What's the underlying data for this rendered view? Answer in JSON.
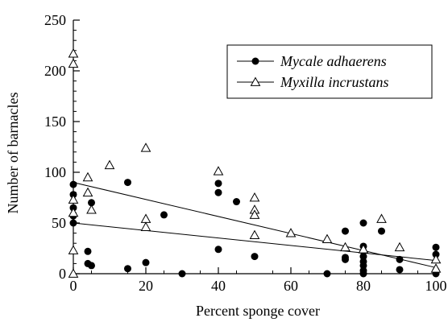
{
  "chart_data": {
    "type": "scatter",
    "xlabel": "Percent sponge cover",
    "ylabel": "Number of barnacles",
    "xlim": [
      0,
      100
    ],
    "ylim": [
      0,
      250
    ],
    "xticks": [
      0,
      20,
      40,
      60,
      80,
      100
    ],
    "yticks": [
      0,
      50,
      100,
      150,
      200,
      250
    ],
    "grid": false,
    "legend_position": "top-right",
    "series": [
      {
        "name": "Mycale adhaerens",
        "marker": "filled-circle",
        "color": "#000000",
        "points": [
          [
            0,
            88
          ],
          [
            0,
            78
          ],
          [
            0,
            65
          ],
          [
            0,
            57
          ],
          [
            0,
            50
          ],
          [
            4,
            22
          ],
          [
            4,
            10
          ],
          [
            5,
            70
          ],
          [
            5,
            8
          ],
          [
            15,
            90
          ],
          [
            15,
            5
          ],
          [
            20,
            11
          ],
          [
            25,
            58
          ],
          [
            30,
            0
          ],
          [
            40,
            89
          ],
          [
            40,
            80
          ],
          [
            40,
            24
          ],
          [
            45,
            71
          ],
          [
            50,
            17
          ],
          [
            70,
            0
          ],
          [
            75,
            42
          ],
          [
            75,
            16
          ],
          [
            75,
            14
          ],
          [
            80,
            50
          ],
          [
            80,
            27
          ],
          [
            80,
            22
          ],
          [
            80,
            17
          ],
          [
            80,
            12
          ],
          [
            80,
            8
          ],
          [
            80,
            3
          ],
          [
            80,
            0
          ],
          [
            85,
            42
          ],
          [
            90,
            14
          ],
          [
            90,
            4
          ],
          [
            100,
            26
          ],
          [
            100,
            19
          ],
          [
            100,
            3
          ],
          [
            100,
            0
          ]
        ],
        "trend": {
          "x": [
            0,
            100
          ],
          "y": [
            90,
            6
          ]
        }
      },
      {
        "name": "Myxilla incrustans",
        "marker": "open-triangle",
        "color": "#000000",
        "points": [
          [
            0,
            217
          ],
          [
            0,
            207
          ],
          [
            0,
            73
          ],
          [
            0,
            60
          ],
          [
            0,
            23
          ],
          [
            0,
            0
          ],
          [
            4,
            95
          ],
          [
            4,
            80
          ],
          [
            5,
            63
          ],
          [
            10,
            107
          ],
          [
            20,
            124
          ],
          [
            20,
            54
          ],
          [
            20,
            46
          ],
          [
            40,
            101
          ],
          [
            50,
            75
          ],
          [
            50,
            63
          ],
          [
            50,
            58
          ],
          [
            50,
            38
          ],
          [
            60,
            40
          ],
          [
            70,
            34
          ],
          [
            75,
            26
          ],
          [
            80,
            24
          ],
          [
            85,
            54
          ],
          [
            90,
            26
          ],
          [
            100,
            14
          ],
          [
            100,
            5
          ]
        ],
        "trend": {
          "x": [
            0,
            100
          ],
          "y": [
            50,
            13
          ]
        }
      }
    ]
  }
}
